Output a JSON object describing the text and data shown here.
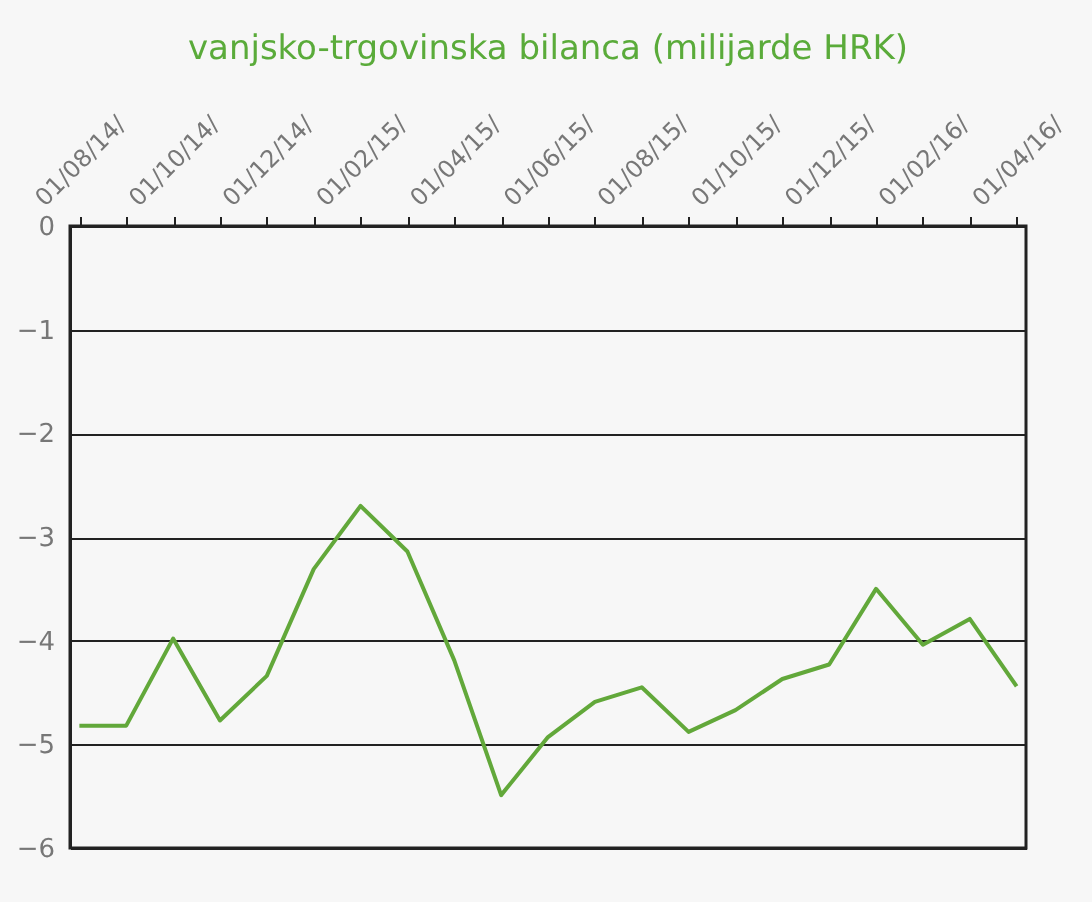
{
  "chart_data": {
    "type": "line",
    "title": "vanjsko-trgovinska bilanca (milijarde HRK)",
    "categories": [
      "01/08/14/",
      null,
      "01/10/14/",
      null,
      "01/12/14/",
      null,
      "01/02/15/",
      null,
      "01/04/15/",
      null,
      "01/06/15/",
      null,
      "01/08/15/",
      null,
      "01/10/15/",
      null,
      "01/12/15/",
      null,
      "01/02/16/",
      null,
      "01/04/16/"
    ],
    "series": [
      {
        "color": "#62a83a",
        "values": [
          -4.82,
          -4.82,
          -3.98,
          -4.77,
          -4.34,
          -3.31,
          -2.7,
          -3.14,
          -4.19,
          -5.49,
          -4.93,
          -4.59,
          -4.45,
          -4.88,
          -4.67,
          -4.37,
          -4.23,
          -3.5,
          -4.04,
          -3.79,
          -4.44
        ]
      }
    ],
    "ylim": [
      -6,
      0
    ],
    "yticks": [
      -6,
      -5,
      -4,
      -3,
      -2,
      -1,
      0
    ],
    "grid": "y",
    "marker": "none",
    "line_style": "solid"
  }
}
